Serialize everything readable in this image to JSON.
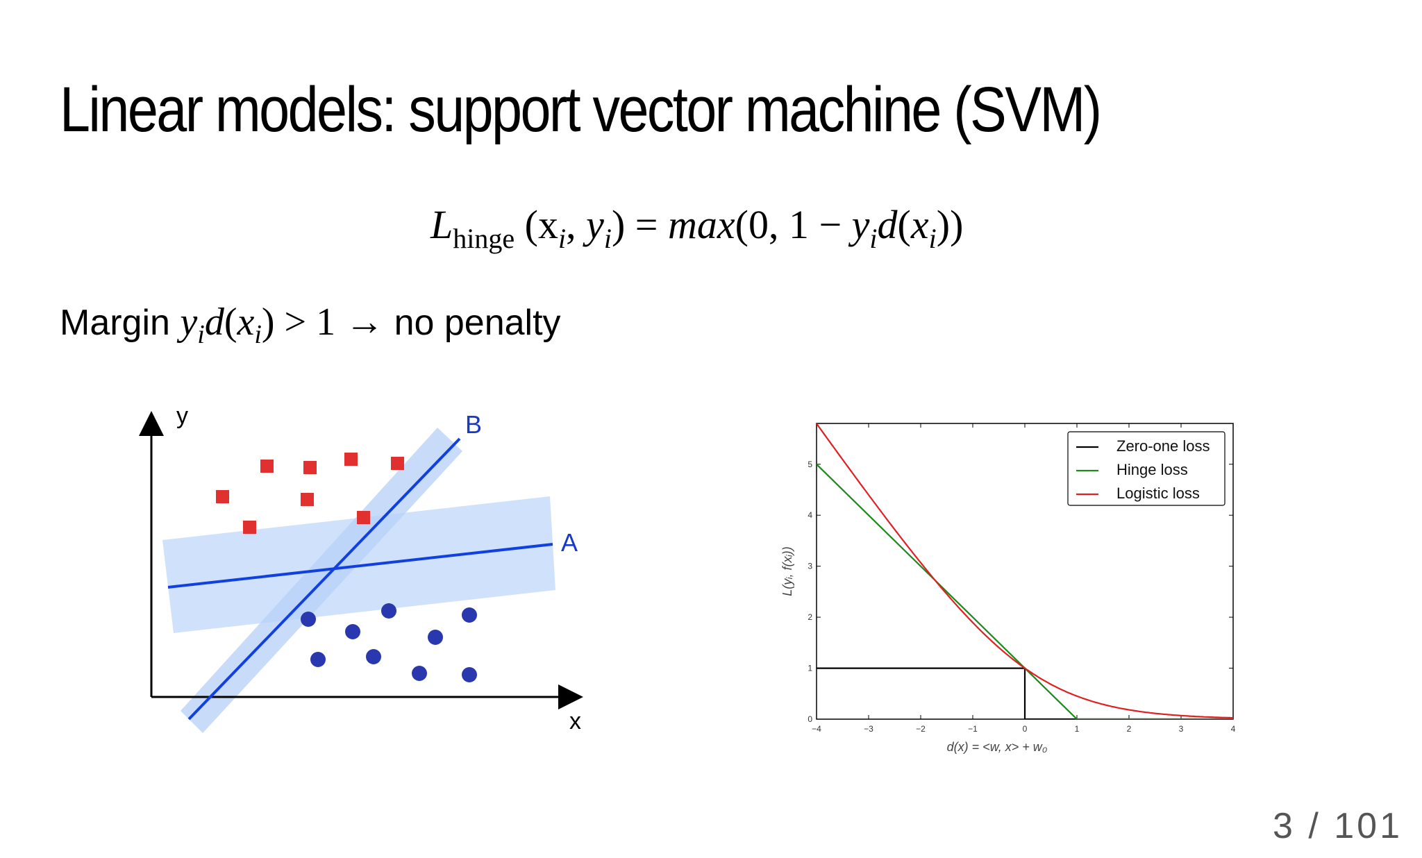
{
  "slide": {
    "title": "Linear models: support vector machine (SVM)",
    "formula": {
      "lhs": "L",
      "lhs_sub": "hinge",
      "args": "(x",
      "rest": "max(0, 1 − y"
    },
    "margin_text_prefix": "Margin",
    "margin_text_suffix": "no penalty",
    "page_number": "3 / 101"
  },
  "svm_diagram": {
    "axis_x_label": "x",
    "axis_y_label": "y",
    "line_a_label": "A",
    "line_b_label": "B",
    "colors": {
      "band": "#c7dcfa",
      "line": "#1040e0",
      "square": "#e03030",
      "circle": "#2a38b0",
      "label": "#1838c8"
    }
  },
  "chart_data": {
    "type": "line",
    "xlabel": "d(x) = <w, x> + w₀",
    "ylabel": "L(yᵢ, f(xᵢ))",
    "xlim": [
      -4,
      4
    ],
    "ylim": [
      0,
      5.8
    ],
    "xticks": [
      -4,
      -3,
      -2,
      -1,
      0,
      1,
      2,
      3,
      4
    ],
    "yticks": [
      0,
      1,
      2,
      3,
      4,
      5
    ],
    "legend_position": "top-right",
    "series": [
      {
        "name": "Zero-one loss",
        "color": "#000000",
        "x": [
          -4,
          0,
          0,
          4
        ],
        "y": [
          1,
          1,
          0,
          0
        ]
      },
      {
        "name": "Hinge loss",
        "color": "#1a8a1a",
        "x": [
          -4,
          1,
          4
        ],
        "y": [
          5,
          0,
          0
        ]
      },
      {
        "name": "Logistic loss",
        "color": "#e02020",
        "function": "log2(1+exp(-x))"
      }
    ]
  }
}
